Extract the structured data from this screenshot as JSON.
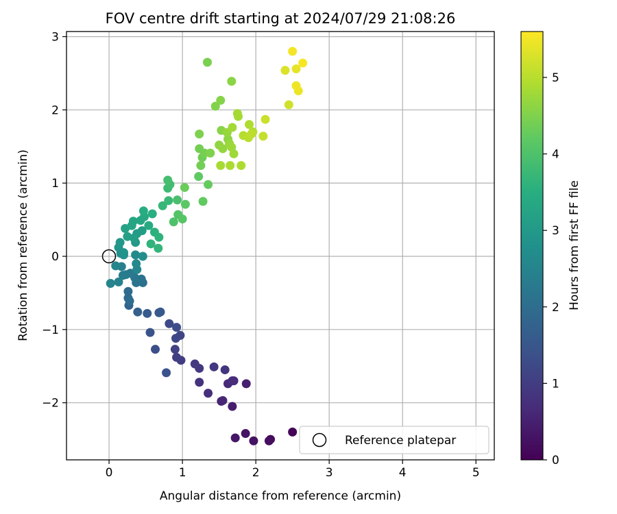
{
  "chart_data": {
    "type": "scatter",
    "title": "FOV centre drift starting at 2024/07/29 21:08:26",
    "xlabel": "Angular distance from reference (arcmin)",
    "ylabel": "Rotation from reference (arcmin)",
    "xlim": [
      -0.58,
      5.25
    ],
    "ylim": [
      -2.78,
      3.07
    ],
    "xticks": [
      0,
      1,
      2,
      3,
      4,
      5
    ],
    "xtick_labels": [
      "0",
      "1",
      "2",
      "3",
      "4",
      "5"
    ],
    "yticks": [
      -2,
      -1,
      0,
      1,
      2,
      3
    ],
    "ytick_labels": [
      "−2",
      "−1",
      "0",
      "1",
      "2",
      "3"
    ],
    "grid": true,
    "legend": {
      "location": "lower-right",
      "entries": [
        "Reference platepar"
      ]
    },
    "colorbar": {
      "label": "Hours from first FF file",
      "colormap": "viridis",
      "range": [
        0,
        5.6
      ],
      "ticks": [
        0,
        1,
        2,
        3,
        4,
        5
      ],
      "tick_labels": [
        "0",
        "1",
        "2",
        "3",
        "4",
        "5"
      ]
    },
    "reference_point": {
      "name": "Reference platepar",
      "x": 0,
      "y": 0
    },
    "series": [
      {
        "points": [
          [
            2.5,
            -2.4,
            0.05
          ],
          [
            2.2,
            -2.5,
            0.15
          ],
          [
            2.18,
            -2.52,
            0.2
          ],
          [
            1.97,
            -2.52,
            0.25
          ],
          [
            1.86,
            -2.42,
            0.3
          ],
          [
            1.72,
            -2.48,
            0.35
          ],
          [
            1.68,
            -2.05,
            0.45
          ],
          [
            1.87,
            -1.74,
            0.5
          ],
          [
            1.53,
            -1.98,
            0.55
          ],
          [
            1.55,
            -1.97,
            0.6
          ],
          [
            1.7,
            -1.7,
            0.62
          ],
          [
            1.62,
            -1.74,
            0.65
          ],
          [
            1.68,
            -1.7,
            0.7
          ],
          [
            1.35,
            -1.87,
            0.75
          ],
          [
            1.23,
            -1.72,
            0.8
          ],
          [
            1.58,
            -1.55,
            0.85
          ],
          [
            1.43,
            -1.51,
            0.9
          ],
          [
            1.23,
            -1.53,
            0.92
          ],
          [
            1.17,
            -1.47,
            0.95
          ],
          [
            0.98,
            -1.42,
            1.0
          ],
          [
            0.92,
            -1.38,
            1.05
          ],
          [
            0.9,
            -1.27,
            1.1
          ],
          [
            0.97,
            -1.08,
            1.15
          ],
          [
            0.91,
            -1.12,
            1.2
          ],
          [
            0.82,
            -0.92,
            1.25
          ],
          [
            0.92,
            -0.97,
            1.3
          ],
          [
            0.63,
            -1.27,
            1.35
          ],
          [
            0.78,
            -1.59,
            1.4
          ],
          [
            0.56,
            -1.04,
            1.45
          ],
          [
            0.7,
            -0.76,
            1.5
          ],
          [
            0.68,
            -0.77,
            1.55
          ],
          [
            0.52,
            -0.78,
            1.6
          ],
          [
            0.39,
            -0.76,
            1.7
          ],
          [
            0.27,
            -0.67,
            1.8
          ],
          [
            0.26,
            -0.57,
            1.9
          ],
          [
            0.26,
            -0.48,
            1.95
          ],
          [
            0.28,
            -0.61,
            2.0
          ],
          [
            0.46,
            -0.36,
            2.05
          ],
          [
            0.44,
            -0.31,
            2.1
          ],
          [
            0.37,
            -0.36,
            2.15
          ],
          [
            0.35,
            -0.29,
            2.2
          ],
          [
            0.29,
            -0.23,
            2.25
          ],
          [
            0.23,
            -0.25,
            2.3
          ],
          [
            0.19,
            -0.26,
            2.35
          ],
          [
            0.17,
            -0.14,
            2.4
          ],
          [
            0.13,
            -0.35,
            2.45
          ],
          [
            0.02,
            -0.37,
            2.5
          ],
          [
            0.09,
            -0.13,
            2.52
          ],
          [
            0.38,
            -0.18,
            2.55
          ],
          [
            0.37,
            -0.1,
            2.6
          ],
          [
            0.36,
            0.02,
            2.65
          ],
          [
            0.46,
            -0.0,
            2.7
          ],
          [
            0.2,
            0.02,
            2.75
          ],
          [
            0.16,
            0.04,
            2.8
          ],
          [
            0.2,
            0.05,
            2.85
          ],
          [
            0.13,
            0.12,
            2.9
          ],
          [
            0.15,
            0.19,
            2.95
          ],
          [
            0.36,
            0.19,
            3.0
          ],
          [
            0.38,
            0.31,
            3.05
          ],
          [
            0.45,
            0.35,
            3.1
          ],
          [
            0.34,
            0.25,
            3.12
          ],
          [
            0.25,
            0.27,
            3.15
          ],
          [
            0.22,
            0.38,
            3.2
          ],
          [
            0.31,
            0.42,
            3.25
          ],
          [
            0.33,
            0.48,
            3.28
          ],
          [
            0.43,
            0.49,
            3.3
          ],
          [
            0.48,
            0.54,
            3.35
          ],
          [
            0.54,
            0.42,
            3.4
          ],
          [
            0.47,
            0.62,
            3.45
          ],
          [
            0.59,
            0.58,
            3.5
          ],
          [
            0.62,
            0.33,
            3.55
          ],
          [
            0.68,
            0.26,
            3.6
          ],
          [
            0.57,
            0.17,
            3.62
          ],
          [
            0.67,
            0.11,
            3.65
          ],
          [
            0.73,
            0.69,
            3.7
          ],
          [
            0.81,
            0.76,
            3.75
          ],
          [
            0.8,
            0.93,
            3.8
          ],
          [
            0.83,
            0.98,
            3.85
          ],
          [
            0.8,
            1.04,
            3.9
          ],
          [
            0.93,
            0.77,
            3.95
          ],
          [
            0.88,
            0.47,
            4.0
          ],
          [
            0.94,
            0.57,
            4.05
          ],
          [
            1.0,
            0.51,
            4.1
          ],
          [
            1.04,
            0.71,
            4.15
          ],
          [
            1.22,
            1.09,
            4.2
          ],
          [
            1.28,
            0.75,
            4.22
          ],
          [
            1.35,
            0.98,
            4.25
          ],
          [
            1.03,
            0.94,
            4.3
          ],
          [
            1.27,
            1.35,
            4.35
          ],
          [
            1.25,
            1.24,
            4.38
          ],
          [
            1.23,
            1.47,
            4.4
          ],
          [
            1.3,
            1.41,
            4.42
          ],
          [
            1.34,
            2.65,
            4.45
          ],
          [
            1.23,
            1.67,
            4.48
          ],
          [
            1.38,
            1.41,
            4.5
          ],
          [
            1.45,
            2.05,
            4.52
          ],
          [
            1.52,
            2.13,
            4.55
          ],
          [
            1.53,
            1.72,
            4.58
          ],
          [
            1.67,
            2.39,
            4.6
          ],
          [
            1.62,
            1.6,
            4.62
          ],
          [
            1.5,
            1.52,
            4.65
          ],
          [
            1.55,
            1.47,
            4.68
          ],
          [
            1.61,
            1.69,
            4.7
          ],
          [
            1.64,
            1.54,
            4.72
          ],
          [
            1.67,
            1.49,
            4.75
          ],
          [
            1.7,
            1.4,
            4.78
          ],
          [
            1.68,
            1.76,
            4.8
          ],
          [
            1.75,
            1.95,
            4.82
          ],
          [
            1.52,
            1.24,
            4.85
          ],
          [
            1.65,
            1.24,
            4.88
          ],
          [
            1.8,
            1.24,
            4.9
          ],
          [
            1.91,
            1.8,
            4.92
          ],
          [
            1.96,
            1.7,
            4.95
          ],
          [
            1.83,
            1.65,
            4.98
          ],
          [
            1.9,
            1.62,
            5.0
          ],
          [
            1.94,
            1.67,
            5.05
          ],
          [
            2.1,
            1.64,
            5.1
          ],
          [
            2.13,
            1.87,
            5.15
          ],
          [
            2.45,
            2.07,
            5.2
          ],
          [
            2.4,
            2.54,
            5.3
          ],
          [
            2.55,
            2.56,
            5.4
          ],
          [
            2.58,
            2.26,
            5.45
          ],
          [
            2.55,
            2.33,
            5.48
          ],
          [
            2.5,
            2.8,
            5.52
          ],
          [
            2.64,
            2.64,
            5.55
          ],
          [
            1.76,
            1.91,
            4.83
          ]
        ]
      }
    ]
  }
}
